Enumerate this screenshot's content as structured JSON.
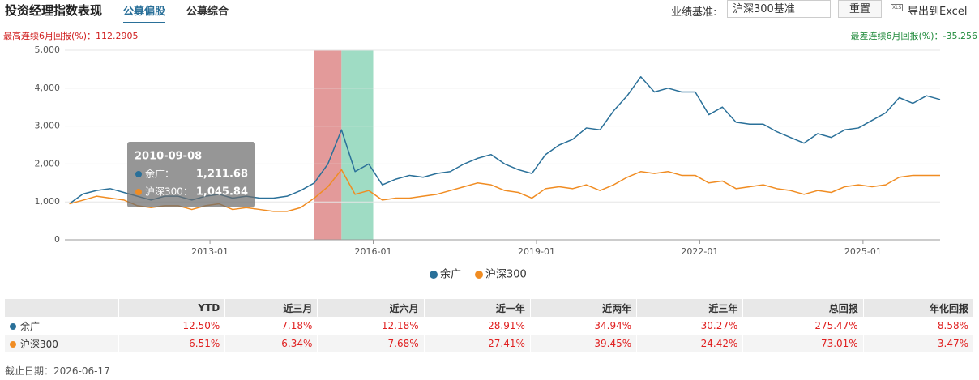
{
  "header": {
    "title": "投资经理指数表现",
    "tabs": [
      "公募偏股",
      "公募综合"
    ],
    "benchmark_label": "业绩基准:",
    "benchmark_value": "沪深300基准",
    "reset": "重置",
    "export": "导出到Excel",
    "export_icon": "XLS"
  },
  "chart_data": {
    "type": "line",
    "annotations": {
      "best": "最高连续6月回报(%)：112.2905",
      "worst": "最差连续6月回报(%)：-35.256"
    },
    "bands": [
      {
        "start": "2014-12",
        "end": "2015-06",
        "color": "#e39a9a"
      },
      {
        "start": "2015-06",
        "end": "2016-01",
        "color": "#9fdcc4"
      }
    ],
    "x": [
      "2010-06",
      "2010-09",
      "2010-12",
      "2011-03",
      "2011-06",
      "2011-09",
      "2011-12",
      "2012-03",
      "2012-06",
      "2012-09",
      "2012-12",
      "2013-03",
      "2013-06",
      "2013-09",
      "2013-12",
      "2014-03",
      "2014-06",
      "2014-09",
      "2014-12",
      "2015-03",
      "2015-06",
      "2015-09",
      "2015-12",
      "2016-03",
      "2016-06",
      "2016-09",
      "2016-12",
      "2017-03",
      "2017-06",
      "2017-09",
      "2017-12",
      "2018-03",
      "2018-06",
      "2018-09",
      "2018-12",
      "2019-03",
      "2019-06",
      "2019-09",
      "2019-12",
      "2020-03",
      "2020-06",
      "2020-09",
      "2020-12",
      "2021-03",
      "2021-06",
      "2021-09",
      "2021-12",
      "2022-03",
      "2022-06",
      "2022-09",
      "2022-12",
      "2023-03",
      "2023-06",
      "2023-09",
      "2023-12",
      "2024-03",
      "2024-06",
      "2024-09",
      "2024-12",
      "2025-03",
      "2025-06",
      "2025-09",
      "2025-12",
      "2026-03",
      "2026-06"
    ],
    "series": [
      {
        "name": "余广",
        "color": "#2a7099",
        "values": [
          950,
          1210,
          1300,
          1350,
          1250,
          1150,
          1050,
          1150,
          1150,
          1050,
          1150,
          1200,
          1100,
          1150,
          1100,
          1100,
          1150,
          1300,
          1500,
          2000,
          2900,
          1800,
          2000,
          1450,
          1600,
          1700,
          1650,
          1750,
          1800,
          2000,
          2150,
          2250,
          2000,
          1850,
          1750,
          2250,
          2500,
          2650,
          2950,
          2900,
          3400,
          3800,
          4300,
          3900,
          4000,
          3900,
          3900,
          3300,
          3500,
          3100,
          3050,
          3050,
          2850,
          2700,
          2550,
          2800,
          2700,
          2900,
          2950,
          3150,
          3350,
          3750,
          3600,
          3800,
          3700
        ]
      },
      {
        "name": "沪深300",
        "color": "#f08c22",
        "values": [
          950,
          1046,
          1150,
          1100,
          1050,
          900,
          850,
          900,
          900,
          800,
          900,
          950,
          800,
          850,
          800,
          750,
          750,
          850,
          1100,
          1400,
          1850,
          1200,
          1300,
          1050,
          1100,
          1100,
          1150,
          1200,
          1300,
          1400,
          1500,
          1450,
          1300,
          1250,
          1100,
          1350,
          1400,
          1350,
          1450,
          1300,
          1450,
          1650,
          1800,
          1750,
          1800,
          1700,
          1700,
          1500,
          1550,
          1350,
          1400,
          1450,
          1350,
          1300,
          1200,
          1300,
          1250,
          1400,
          1450,
          1400,
          1450,
          1650,
          1700,
          1700,
          1700
        ]
      }
    ],
    "xlim": [
      "2010-05",
      "2026-06"
    ],
    "xticks": [
      "2013-01",
      "2016-01",
      "2019-01",
      "2022-01",
      "2025-01"
    ],
    "ylim": [
      0,
      5000
    ],
    "yticks": [
      0,
      {
        "value": 1000,
        "label": "1,000"
      },
      {
        "value": 2000,
        "label": "2,000"
      },
      {
        "value": 3000,
        "label": "3,000"
      },
      {
        "value": 4000,
        "label": "4,000"
      },
      {
        "value": 5000,
        "label": "5,000"
      }
    ],
    "grid": true,
    "tooltip": {
      "date": "2010-09-08",
      "rows": [
        {
          "name": "余广：",
          "value": "1,211.68"
        },
        {
          "name": "沪深300：",
          "value": "1,045.84"
        }
      ]
    }
  },
  "table": {
    "columns": [
      "YTD",
      "近三月",
      "近六月",
      "近一年",
      "近两年",
      "近三年",
      "总回报",
      "年化回报"
    ],
    "rows": [
      {
        "name": "余广",
        "color": "#2a7099",
        "cells": [
          "12.50%",
          "7.18%",
          "12.18%",
          "28.91%",
          "34.94%",
          "30.27%",
          "275.47%",
          "8.58%"
        ]
      },
      {
        "name": "沪深300",
        "color": "#f08c22",
        "cells": [
          "6.51%",
          "6.34%",
          "7.68%",
          "27.41%",
          "39.45%",
          "24.42%",
          "73.01%",
          "3.47%"
        ]
      }
    ]
  },
  "footer": "截止日期：2026-06-17"
}
